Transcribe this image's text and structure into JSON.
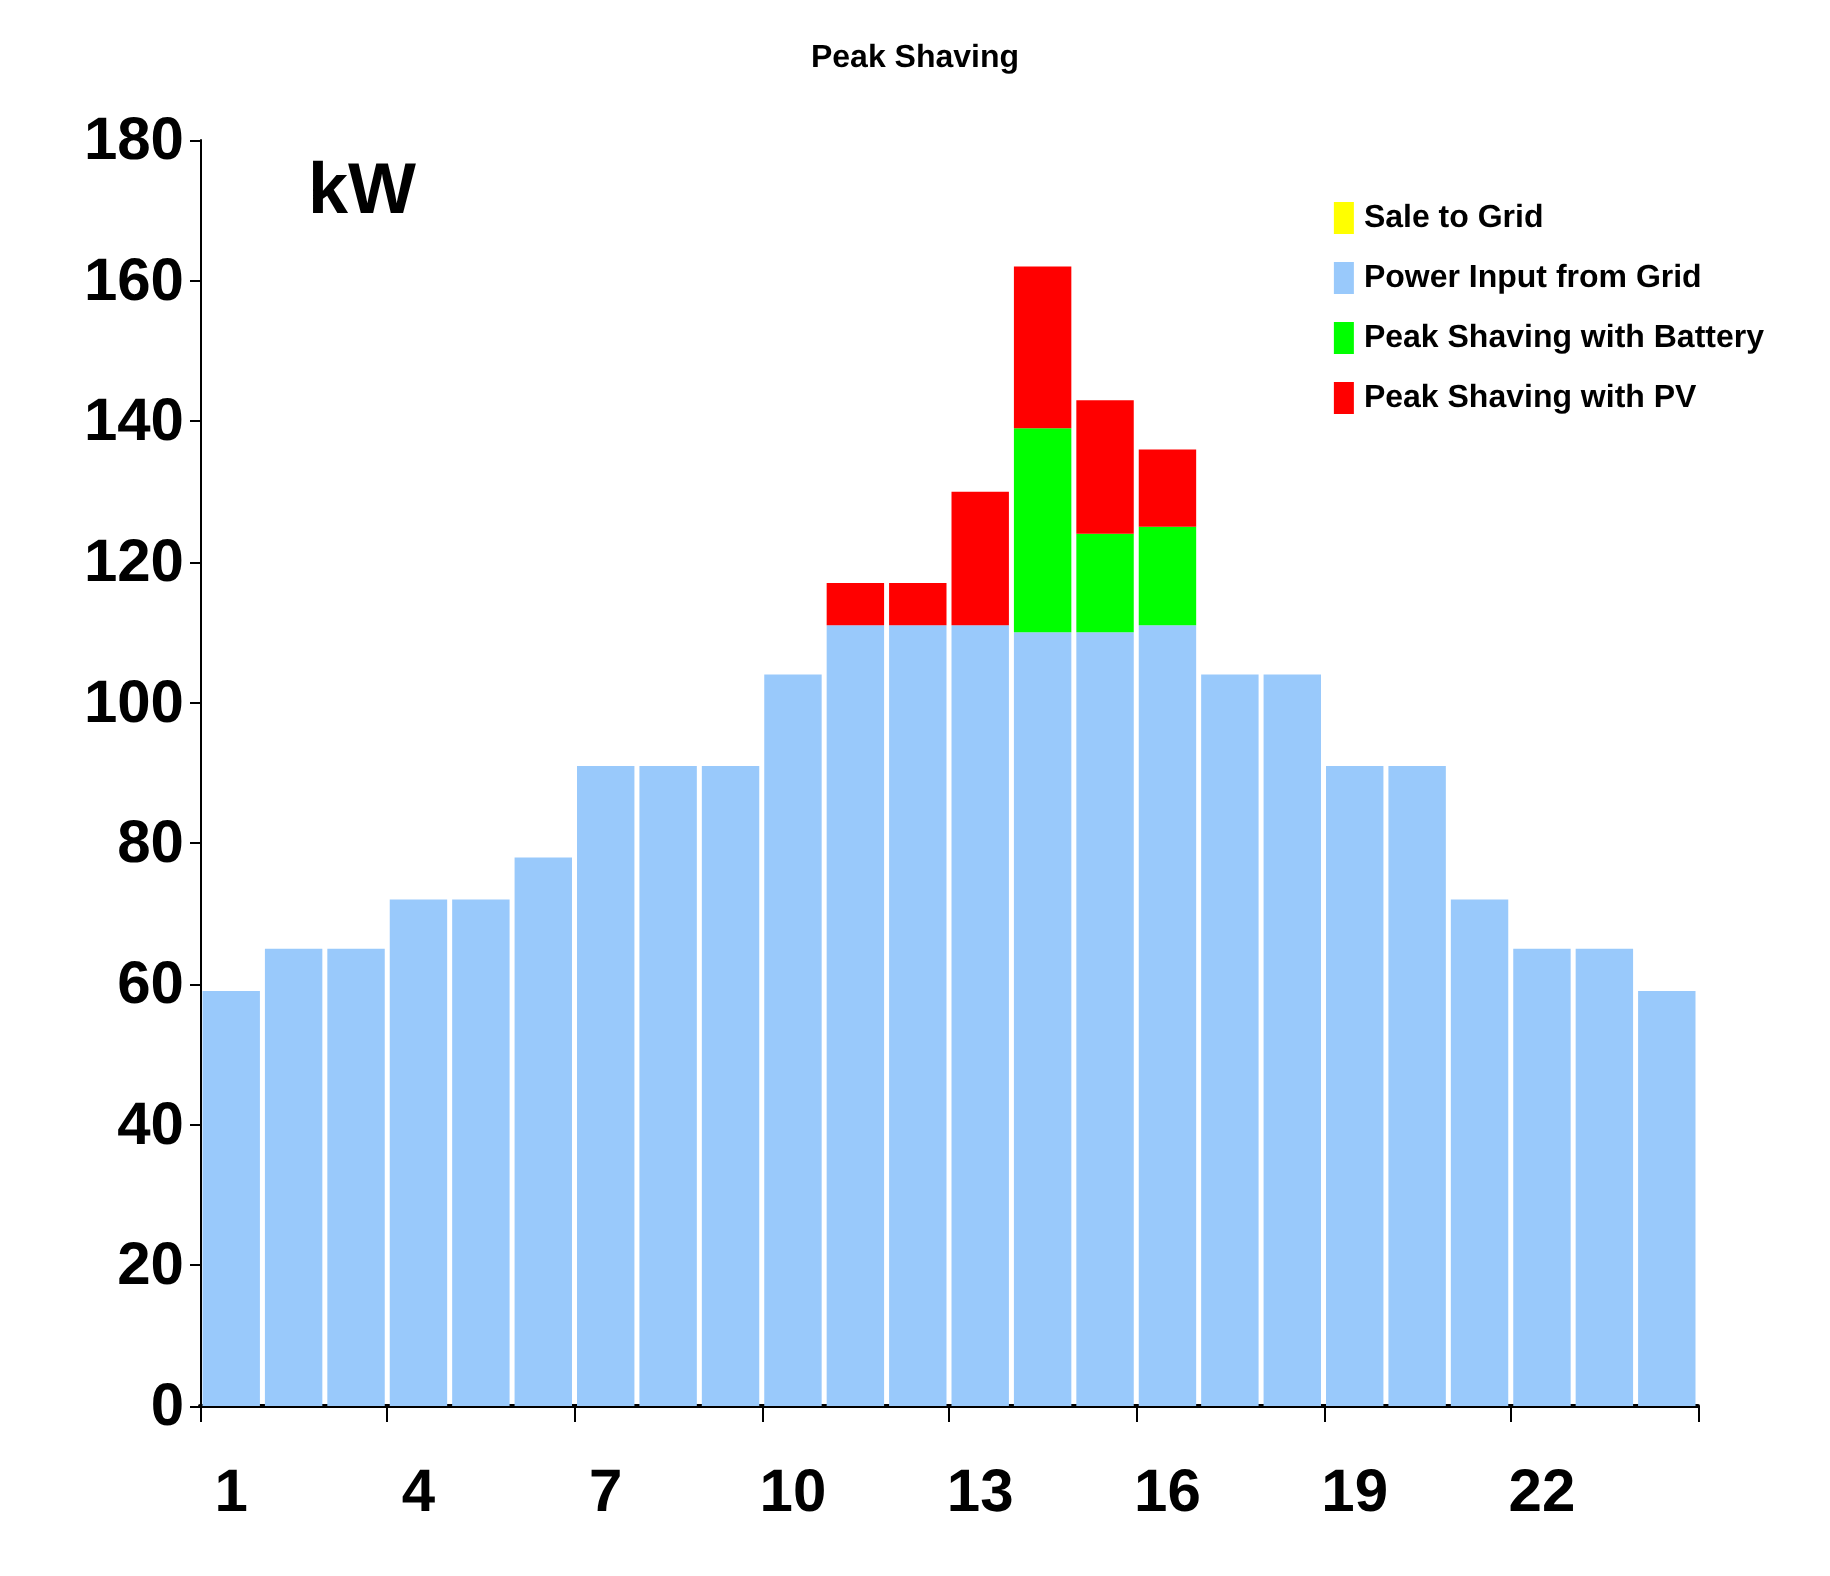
{
  "chart_data": {
    "type": "bar",
    "title": "Peak Shaving",
    "ylabel": "kW",
    "stacked": true,
    "legend": "top right",
    "grid": false,
    "categories": [
      "1",
      null,
      null,
      "4",
      null,
      null,
      "7",
      null,
      null,
      "10",
      null,
      null,
      "13",
      null,
      null,
      "16",
      null,
      null,
      "19",
      null,
      null,
      "22",
      null,
      null
    ],
    "series": [
      {
        "name": "Sale to Grid",
        "color": "#ffff00",
        "values": [
          null,
          null,
          null,
          null,
          null,
          null,
          null,
          null,
          null,
          null,
          null,
          null,
          null,
          null,
          null,
          null,
          null,
          null,
          null,
          null,
          null,
          null,
          null,
          null
        ]
      },
      {
        "name": "Power Input from Grid",
        "color": "#99c9fb",
        "values": [
          59,
          65,
          65,
          72,
          72,
          78,
          91,
          91,
          91,
          104,
          111,
          111,
          111,
          110,
          110,
          111,
          104,
          104,
          91,
          91,
          72,
          65,
          65,
          59
        ]
      },
      {
        "name": "Peak Shaving with Battery",
        "color": "#00ff00",
        "values": [
          null,
          null,
          null,
          null,
          null,
          null,
          null,
          null,
          null,
          null,
          null,
          null,
          null,
          29,
          14,
          14,
          null,
          null,
          null,
          null,
          null,
          null,
          null,
          null
        ]
      },
      {
        "name": "Peak Shaving with PV",
        "color": "#ff0000",
        "values": [
          null,
          null,
          null,
          null,
          null,
          null,
          null,
          null,
          null,
          null,
          6,
          6,
          19,
          23,
          19,
          11,
          null,
          null,
          null,
          null,
          null,
          null,
          null,
          null
        ]
      }
    ],
    "ylim": [
      0,
      180
    ],
    "yticks": [
      0,
      20,
      40,
      60,
      80,
      100,
      120,
      140,
      160,
      180
    ]
  }
}
